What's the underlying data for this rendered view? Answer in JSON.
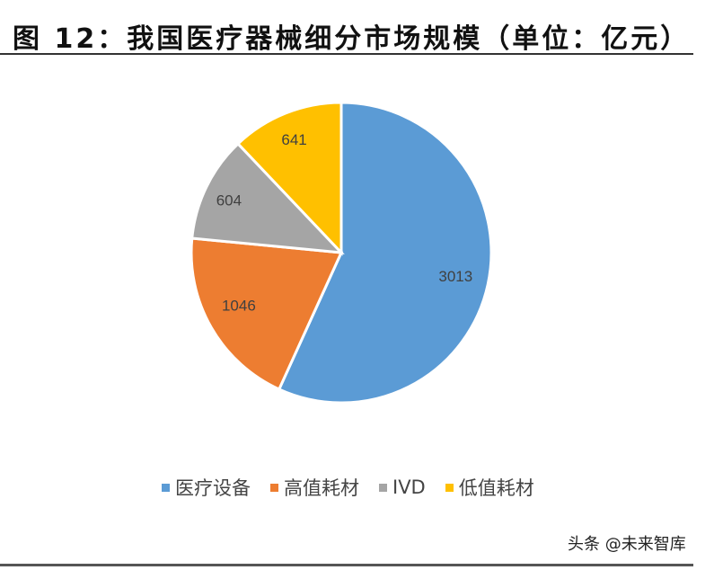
{
  "header": {
    "title": "图 12：我国医疗器械细分市场规模（单位：亿元）"
  },
  "chart_data": {
    "type": "pie",
    "title": "我国医疗器械细分市场规模（单位：亿元）",
    "categories": [
      "医疗设备",
      "高值耗材",
      "IVD",
      "低值耗材"
    ],
    "values": [
      3013,
      1046,
      604,
      641
    ],
    "colors": [
      "#5B9BD5",
      "#ED7D31",
      "#A5A5A5",
      "#FFC000"
    ],
    "data_labels": [
      "3013",
      "1046",
      "604",
      "641"
    ],
    "legend_position": "bottom",
    "start_angle_deg": 0,
    "direction": "clockwise"
  },
  "legend": {
    "items": [
      {
        "label": "医疗设备",
        "color": "#5B9BD5"
      },
      {
        "label": "高值耗材",
        "color": "#ED7D31"
      },
      {
        "label": "IVD",
        "color": "#A5A5A5"
      },
      {
        "label": "低值耗材",
        "color": "#FFC000"
      }
    ]
  },
  "footer": {
    "watermark": "头条 @未来智库"
  }
}
